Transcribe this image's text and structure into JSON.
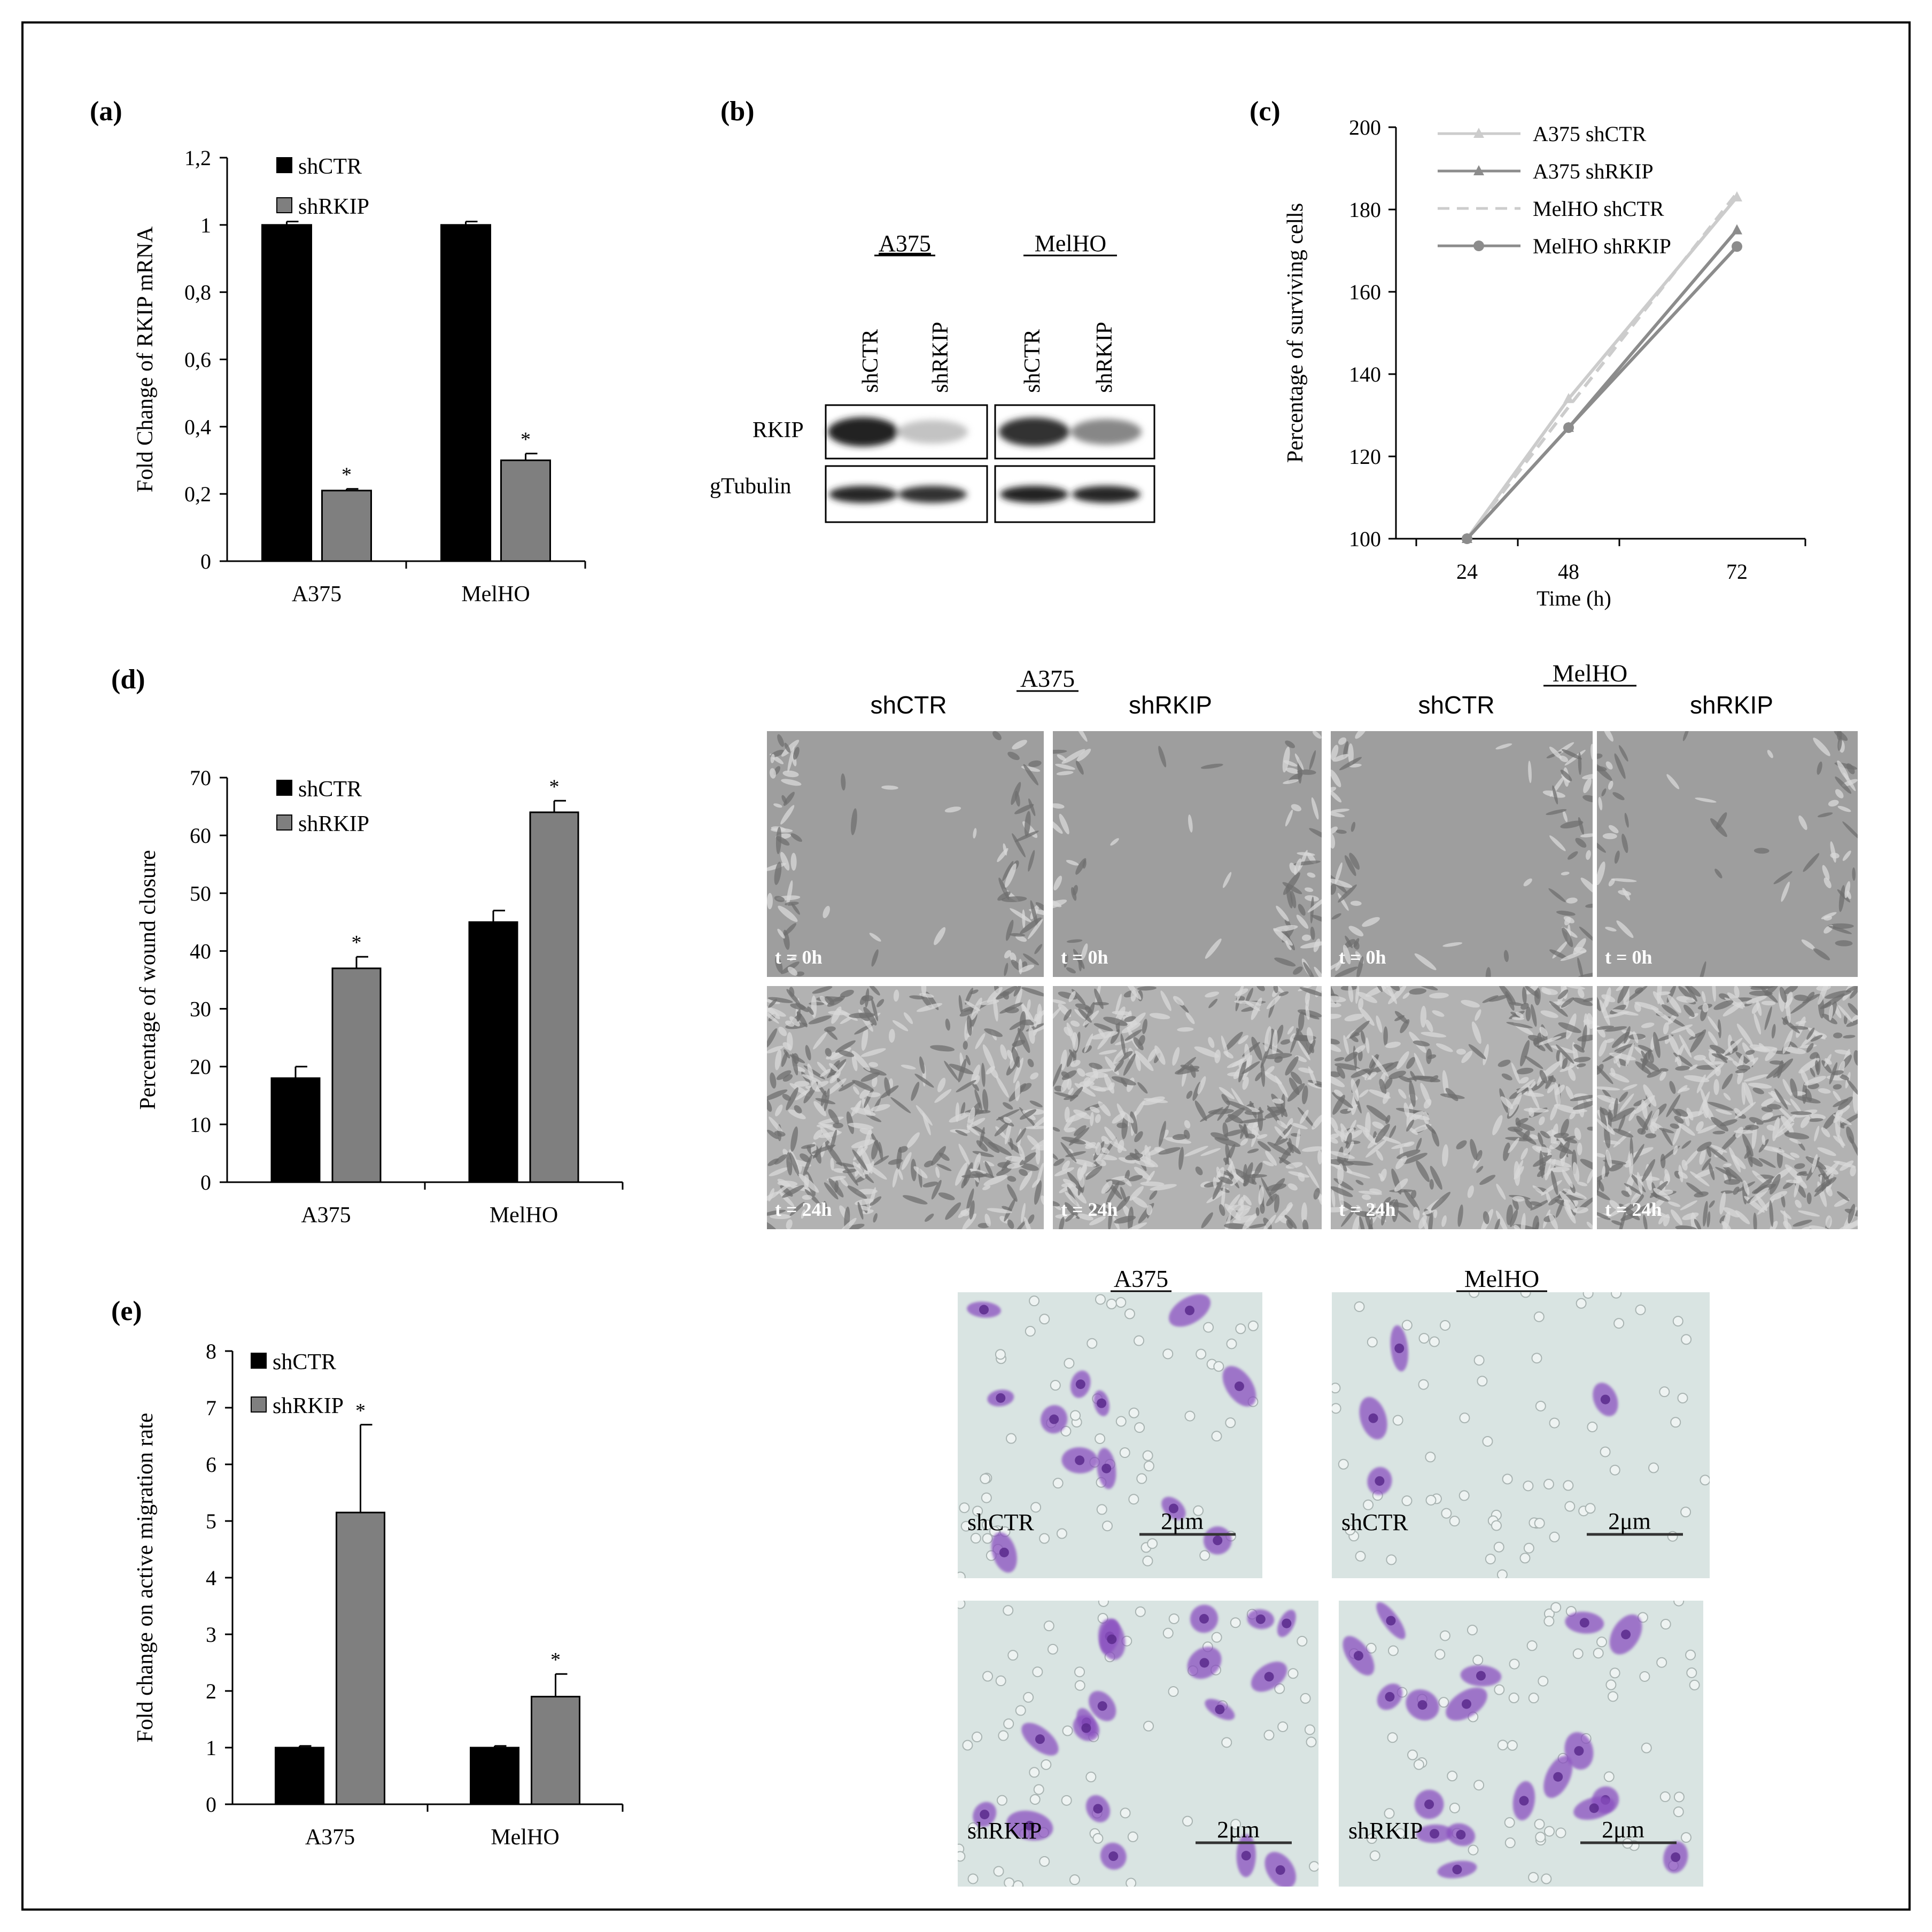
{
  "panels": {
    "a": {
      "letter": "(a)"
    },
    "b": {
      "letter": "(b)"
    },
    "c": {
      "letter": "(c)"
    },
    "d": {
      "letter": "(d)"
    },
    "e": {
      "letter": "(e)"
    }
  },
  "blot": {
    "groups": [
      "A375",
      "MelHO"
    ],
    "lanes": [
      "shCTR",
      "shRKIP",
      "shCTR",
      "shRKIP"
    ],
    "rows": [
      "RKIP",
      "gTubulin"
    ],
    "rkip_band_intensity": [
      0.92,
      0.25,
      0.85,
      0.5
    ],
    "tubulin_band_intensity": [
      0.9,
      0.85,
      0.92,
      0.9
    ]
  },
  "wound_images": {
    "groups": [
      "A375",
      "MelHO"
    ],
    "columns": [
      "shCTR",
      "shRKIP",
      "shCTR",
      "shRKIP"
    ],
    "times": [
      "t = 0h",
      "t = 24h"
    ]
  },
  "transwell_images": {
    "groups": [
      "A375",
      "MelHO"
    ],
    "rows": [
      "shCTR",
      "shRKIP"
    ],
    "scale_label": "2μm"
  },
  "colors": {
    "shCTR": "#000000",
    "shRKIP": "#7f7f7f",
    "stain": "#8a4fc0",
    "membrane": "#d9e4e2"
  },
  "chart_data": [
    {
      "type": "bar",
      "panel": "a",
      "categories": [
        "A375",
        "MelHO"
      ],
      "series": [
        {
          "name": "shCTR",
          "values": [
            1.0,
            1.0
          ],
          "errors": [
            0.01,
            0.01
          ]
        },
        {
          "name": "shRKIP",
          "values": [
            0.21,
            0.3
          ],
          "errors": [
            0.005,
            0.02
          ]
        }
      ],
      "significance": [
        "*",
        "*"
      ],
      "ylabel": "Fold Change of RKIP mRNA",
      "ylim": [
        0,
        1.2
      ],
      "yticks": [
        "0",
        "0,2",
        "0,4",
        "0,6",
        "0,8",
        "1",
        "1,2"
      ],
      "legend": "top-left"
    },
    {
      "type": "line",
      "panel": "c",
      "x": [
        "24",
        "48",
        "72"
      ],
      "series": [
        {
          "name": "A375 shCTR",
          "values": [
            100,
            134,
            183
          ],
          "color": "#cccccc",
          "style": "solid",
          "marker": "triangle"
        },
        {
          "name": "A375 shRKIP",
          "values": [
            100,
            127,
            175
          ],
          "color": "#8c8c8c",
          "style": "solid",
          "marker": "triangle"
        },
        {
          "name": "MelHO shCTR",
          "values": [
            100,
            132,
            184
          ],
          "color": "#cccccc",
          "style": "dashed",
          "marker": "none"
        },
        {
          "name": "MelHO shRKIP",
          "values": [
            100,
            127,
            171
          ],
          "color": "#8c8c8c",
          "style": "solid",
          "marker": "circle"
        }
      ],
      "xlabel": "Time (h)",
      "ylabel": "Percentage of surviving cells",
      "ylim": [
        100,
        200
      ],
      "yticks": [
        "100",
        "120",
        "140",
        "160",
        "180",
        "200"
      ],
      "legend": "top-left"
    },
    {
      "type": "bar",
      "panel": "d",
      "categories": [
        "A375",
        "MelHO"
      ],
      "series": [
        {
          "name": "shCTR",
          "values": [
            18,
            45
          ],
          "errors": [
            2,
            2
          ]
        },
        {
          "name": "shRKIP",
          "values": [
            37,
            64
          ],
          "errors": [
            2,
            2
          ]
        }
      ],
      "significance": [
        "*",
        "*"
      ],
      "ylabel": "Percentage of wound closure",
      "ylim": [
        0,
        70
      ],
      "yticks": [
        "0",
        "10",
        "20",
        "30",
        "40",
        "50",
        "60",
        "70"
      ],
      "legend": "top-left"
    },
    {
      "type": "bar",
      "panel": "e",
      "categories": [
        "A375",
        "MelHO"
      ],
      "series": [
        {
          "name": "shCTR",
          "values": [
            1.0,
            1.0
          ],
          "errors": [
            0.03,
            0.03
          ]
        },
        {
          "name": "shRKIP",
          "values": [
            5.15,
            1.9
          ],
          "errors": [
            1.55,
            0.4
          ]
        }
      ],
      "significance": [
        "*",
        "*"
      ],
      "ylabel": "Fold change on active migration rate",
      "ylim": [
        0,
        8
      ],
      "yticks": [
        "0",
        "1",
        "2",
        "3",
        "4",
        "5",
        "6",
        "7",
        "8"
      ],
      "legend": "top-left"
    }
  ]
}
